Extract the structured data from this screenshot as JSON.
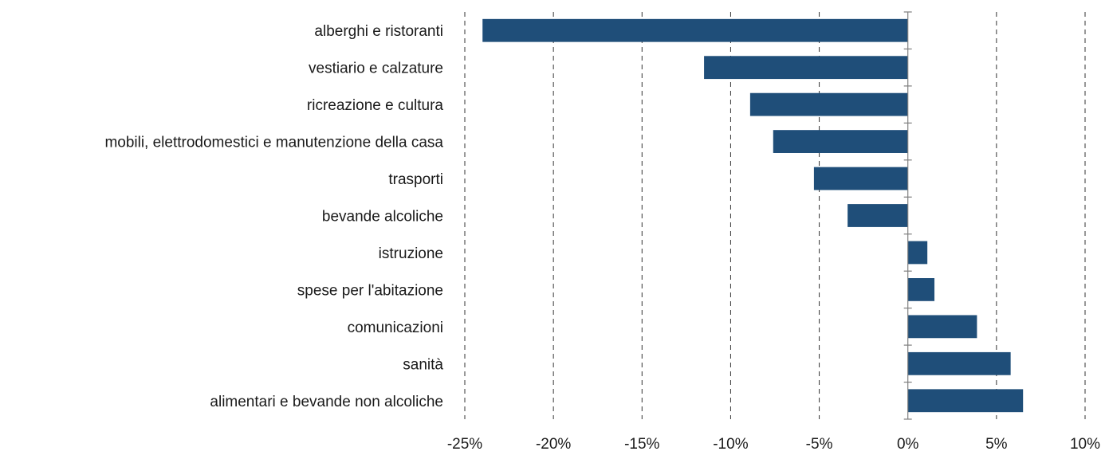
{
  "chart_data": {
    "type": "bar",
    "orientation": "horizontal",
    "title": "",
    "xlabel": "",
    "ylabel": "",
    "categories": [
      "alberghi e ristoranti",
      "vestiario e calzature",
      "ricreazione e cultura",
      "mobili, elettrodomestici e manutenzione della casa",
      "trasporti",
      "bevande alcoliche",
      "istruzione",
      "spese per l'abitazione",
      "comunicazioni",
      "sanità",
      "alimentari e bevande non alcoliche"
    ],
    "values": [
      -24.0,
      -11.5,
      -8.9,
      -7.6,
      -5.3,
      -3.4,
      1.1,
      1.5,
      3.9,
      5.8,
      6.5
    ],
    "xlim": [
      -25,
      10
    ],
    "x_ticks": [
      -25,
      -20,
      -15,
      -10,
      -5,
      0,
      5,
      10
    ],
    "x_tick_labels": [
      "-25%",
      "-20%",
      "-15%",
      "-10%",
      "-5%",
      "0%",
      "5%",
      "10%"
    ],
    "grid": "vertical dashed",
    "legend": "none",
    "bar_color": "#1f4e79"
  }
}
